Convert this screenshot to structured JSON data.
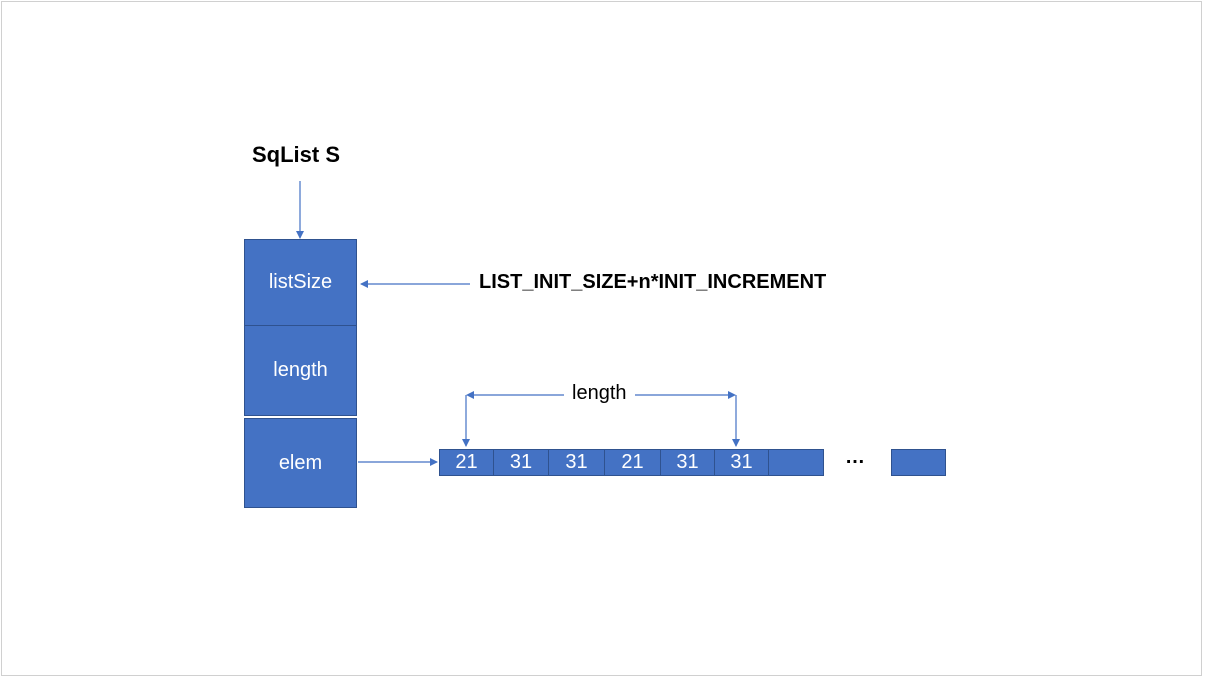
{
  "title": "SqList S",
  "fields": [
    {
      "label": "listSize"
    },
    {
      "label": "length"
    },
    {
      "label": "elem"
    }
  ],
  "size_expression": "LIST_INIT_SIZE+n*INIT_INCREMENT",
  "length_label": "length",
  "array_values": [
    "21",
    "31",
    "31",
    "21",
    "31",
    "31",
    ""
  ],
  "ellipsis": "…",
  "colors": {
    "box_fill": "#4472c4",
    "box_border": "#2f528f",
    "arrow": "#4472c4"
  }
}
